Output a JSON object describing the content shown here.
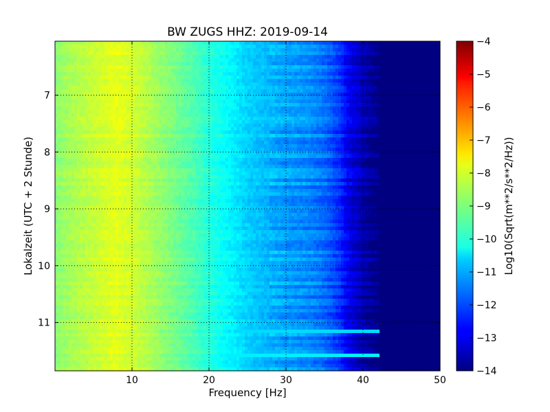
{
  "chart_data": {
    "type": "heatmap",
    "title": "BW ZUGS HHZ: 2019-09-14",
    "xlabel": "Frequency [Hz]",
    "ylabel": "Lokalzeit (UTC + 2 Stunde)",
    "xlim": [
      0,
      50
    ],
    "ylim": [
      11.85,
      6.05
    ],
    "y_axis_inverted": true,
    "x_ticks": [
      "10",
      "20",
      "30",
      "40",
      "50"
    ],
    "y_ticks": [
      "7",
      "8",
      "9",
      "10",
      "11"
    ],
    "grid": true,
    "colormap": "jet",
    "colorbar": {
      "label": "Log10(Sqrt(m**2/s**2/Hz))",
      "range": [
        -14,
        -4
      ],
      "ticks": [
        "-4",
        "-5",
        "-6",
        "-7",
        "-8",
        "-9",
        "-10",
        "-11",
        "-12",
        "-13",
        "-14"
      ]
    },
    "frequency_profile": {
      "frequency_hz": [
        0,
        2,
        5,
        8,
        10,
        12,
        15,
        18,
        20,
        22,
        25,
        28,
        30,
        33,
        35,
        37,
        38,
        40,
        41,
        42,
        50
      ],
      "log10_amplitude": [
        -8.9,
        -8.6,
        -8.3,
        -8.0,
        -8.2,
        -8.5,
        -9.0,
        -9.5,
        -9.9,
        -10.2,
        -10.7,
        -11.0,
        -11.2,
        -11.4,
        -11.7,
        -12.3,
        -12.9,
        -13.5,
        -13.8,
        -14.0,
        -14.0
      ]
    },
    "bright_bands": [
      {
        "time": 11.18,
        "frequency_range_hz": [
          20,
          43
        ],
        "log10_amplitude": -10.6
      },
      {
        "time": 11.57,
        "frequency_range_hz": [
          15,
          42
        ],
        "log10_amplitude": -10.4
      }
    ]
  }
}
